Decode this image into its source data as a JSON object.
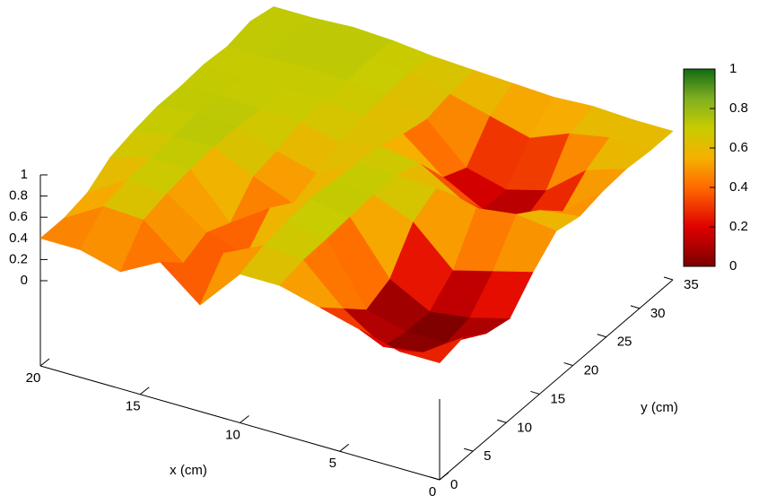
{
  "chart_data": {
    "type": "surface3d",
    "xlabel": "x (cm)",
    "ylabel": "y (cm)",
    "x": [
      0,
      2,
      4,
      6,
      8,
      10,
      12,
      14,
      16,
      18,
      20
    ],
    "y": [
      0,
      3.5,
      7,
      10.5,
      14,
      17.5,
      21,
      24.5,
      28,
      31.5,
      35
    ],
    "z": [
      [
        0.3,
        0.35,
        0.2,
        0.15,
        0.4,
        0.6,
        0.55,
        0.6,
        0.62,
        0.6,
        0.6
      ],
      [
        0.3,
        0.1,
        0.0,
        0.05,
        0.3,
        0.65,
        0.5,
        0.3,
        0.5,
        0.62,
        0.6
      ],
      [
        0.4,
        0.05,
        0.0,
        0.0,
        0.2,
        0.6,
        0.3,
        0.1,
        0.2,
        0.55,
        0.62
      ],
      [
        0.5,
        0.3,
        0.1,
        0.2,
        0.55,
        0.68,
        0.4,
        0.1,
        0.1,
        0.4,
        0.6
      ],
      [
        0.6,
        0.65,
        0.66,
        0.68,
        0.7,
        0.7,
        0.62,
        0.3,
        0.2,
        0.5,
        0.62
      ],
      [
        0.6,
        0.68,
        0.72,
        0.74,
        0.72,
        0.7,
        0.68,
        0.6,
        0.55,
        0.6,
        0.64
      ],
      [
        0.2,
        0.5,
        0.3,
        0.55,
        0.4,
        0.5,
        0.6,
        0.66,
        0.68,
        0.7,
        0.66
      ],
      [
        0.5,
        0.3,
        0.4,
        0.3,
        0.55,
        0.6,
        0.68,
        0.7,
        0.7,
        0.72,
        0.7
      ],
      [
        0.3,
        0.6,
        0.66,
        0.7,
        0.72,
        0.72,
        0.7,
        0.7,
        0.72,
        0.74,
        0.72
      ],
      [
        0.4,
        0.62,
        0.68,
        0.7,
        0.72,
        0.74,
        0.72,
        0.7,
        0.7,
        0.72,
        0.7
      ],
      [
        0.4,
        0.4,
        0.45,
        0.6,
        0.66,
        0.7,
        0.7,
        0.72,
        0.7,
        0.75,
        0.7
      ]
    ],
    "xlim": [
      0,
      20
    ],
    "xticks": [
      0,
      5,
      10,
      15,
      20
    ],
    "ylim": [
      0,
      35
    ],
    "yticks": [
      0,
      5,
      10,
      15,
      20,
      25,
      30,
      35
    ],
    "zlim": [
      0,
      1
    ],
    "zticks": [
      0,
      0.2,
      0.4,
      0.6,
      0.8,
      1
    ],
    "cblim": [
      0,
      1
    ],
    "cbticks": [
      0,
      0.2,
      0.4,
      0.6,
      0.8,
      1
    ],
    "palette": [
      [
        0,
        "#7a0000"
      ],
      [
        0.2,
        "#e00000"
      ],
      [
        0.4,
        "#ff6a00"
      ],
      [
        0.55,
        "#f5b000"
      ],
      [
        0.7,
        "#c8cc00"
      ],
      [
        0.85,
        "#80b020"
      ],
      [
        1,
        "#136b13"
      ]
    ]
  }
}
